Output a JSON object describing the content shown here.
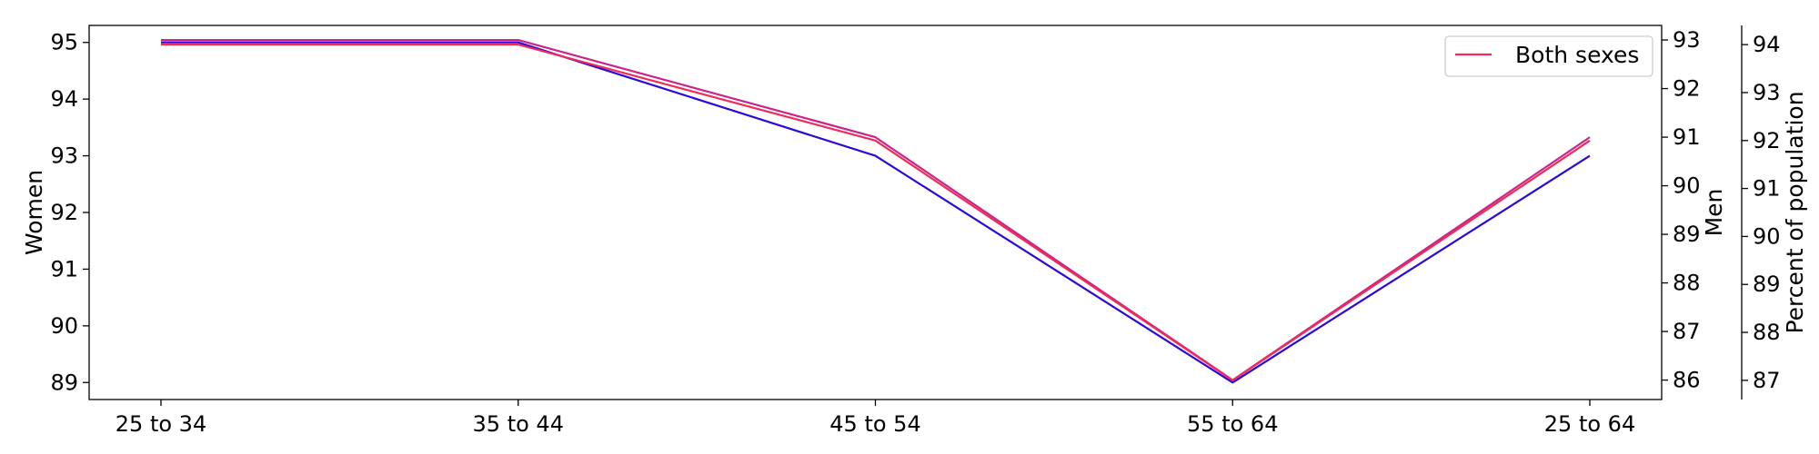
{
  "chart_data": {
    "type": "line",
    "categories": [
      "25 to 34",
      "35 to 44",
      "45 to 54",
      "55 to 64",
      "25 to 64"
    ],
    "axes": {
      "left": {
        "label": "Women",
        "ylim": [
          88.7,
          95.3
        ],
        "ticks": [
          89,
          90,
          91,
          92,
          93,
          94,
          95
        ]
      },
      "right1": {
        "label": "Men",
        "ylim": [
          85.6,
          93.3
        ],
        "ticks": [
          86,
          87,
          88,
          89,
          90,
          91,
          92,
          93
        ]
      },
      "right2": {
        "label": "Percent of population",
        "ylim": [
          86.6,
          94.4
        ],
        "ticks": [
          87,
          88,
          89,
          90,
          91,
          92,
          93,
          94
        ]
      }
    },
    "series": [
      {
        "axis": "left",
        "color": "#2b0ad8",
        "values": [
          95,
          95,
          93,
          89,
          93
        ]
      },
      {
        "axis": "right1",
        "color": "#c8248a",
        "values": [
          93,
          93,
          91,
          86,
          91
        ]
      },
      {
        "name": "Both sexes",
        "axis": "right2",
        "color": "#ef2b5a",
        "values": [
          94,
          94,
          92,
          87,
          92
        ]
      }
    ],
    "legend": {
      "position": "top-right",
      "entries": [
        "Both sexes"
      ]
    },
    "grid": false
  }
}
